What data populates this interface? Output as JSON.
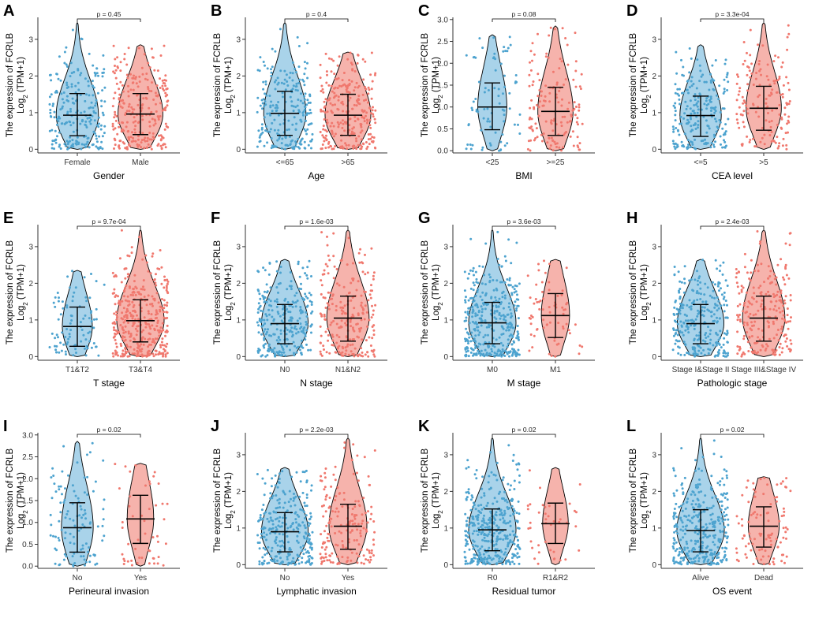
{
  "colors": {
    "group1": "#4DA3CF",
    "group2": "#F0786E",
    "fill1": "#A9D3EA",
    "fill2": "#F6B3AC"
  },
  "ylabel_line1": "The expression of FCRLB",
  "ylabel_log": "Log",
  "ylabel_sub": "2",
  "ylabel_tpm": " (TPM+1)",
  "chart_data": [
    {
      "panel": "A",
      "type": "violin",
      "xlabel": "Gender",
      "categories": [
        "Female",
        "Male"
      ],
      "pvalue": "p = 0.45",
      "yticks": [
        "0",
        "1",
        "2",
        "3"
      ],
      "ylim": [
        -0.1,
        3.6
      ],
      "groups": [
        {
          "name": "Female",
          "median": 0.93,
          "q1": 0.37,
          "q3": 1.52,
          "max": 3.45,
          "npoints": 230
        },
        {
          "name": "Male",
          "median": 0.96,
          "q1": 0.4,
          "q3": 1.52,
          "max": 2.85,
          "npoints": 260
        }
      ]
    },
    {
      "panel": "B",
      "type": "violin",
      "xlabel": "Age",
      "categories": [
        "<=65",
        ">65"
      ],
      "pvalue": "p = 0.4",
      "yticks": [
        "0",
        "1",
        "2",
        "3"
      ],
      "ylim": [
        -0.1,
        3.6
      ],
      "groups": [
        {
          "name": "<=65",
          "median": 0.98,
          "q1": 0.38,
          "q3": 1.58,
          "max": 3.45,
          "npoints": 230
        },
        {
          "name": ">65",
          "median": 0.93,
          "q1": 0.38,
          "q3": 1.5,
          "max": 2.65,
          "npoints": 270
        }
      ]
    },
    {
      "panel": "C",
      "type": "violin",
      "xlabel": "BMI",
      "categories": [
        "<25",
        ">=25"
      ],
      "pvalue": "p = 0.08",
      "yticks": [
        "0.0",
        "0.5",
        "1.0",
        "1.5",
        "2.0",
        "2.5",
        "3.0"
      ],
      "ylim": [
        -0.05,
        3.05
      ],
      "groups": [
        {
          "name": "<25",
          "median": 1.0,
          "q1": 0.48,
          "q3": 1.55,
          "max": 2.65,
          "npoints": 80
        },
        {
          "name": ">=25",
          "median": 0.9,
          "q1": 0.35,
          "q3": 1.45,
          "max": 2.85,
          "npoints": 150
        }
      ]
    },
    {
      "panel": "D",
      "type": "violin",
      "xlabel": "CEA level",
      "categories": [
        "<=5",
        ">5"
      ],
      "pvalue": "p = 3.3e-04",
      "yticks": [
        "0",
        "1",
        "2",
        "3"
      ],
      "ylim": [
        -0.1,
        3.6
      ],
      "groups": [
        {
          "name": "<=5",
          "median": 0.92,
          "q1": 0.35,
          "q3": 1.45,
          "max": 2.85,
          "npoints": 220
        },
        {
          "name": ">5",
          "median": 1.12,
          "q1": 0.52,
          "q3": 1.72,
          "max": 3.45,
          "npoints": 150
        }
      ]
    },
    {
      "panel": "E",
      "type": "violin",
      "xlabel": "T stage",
      "categories": [
        "T1&T2",
        "T3&T4"
      ],
      "pvalue": "p = 9.7e-04",
      "yticks": [
        "0",
        "1",
        "2",
        "3"
      ],
      "ylim": [
        -0.1,
        3.6
      ],
      "groups": [
        {
          "name": "T1&T2",
          "median": 0.82,
          "q1": 0.28,
          "q3": 1.35,
          "max": 2.35,
          "npoints": 90
        },
        {
          "name": "T3&T4",
          "median": 0.98,
          "q1": 0.4,
          "q3": 1.55,
          "max": 3.45,
          "npoints": 380
        }
      ]
    },
    {
      "panel": "F",
      "type": "violin",
      "xlabel": "N stage",
      "categories": [
        "N0",
        "N1&N2"
      ],
      "pvalue": "p = 1.6e-03",
      "yticks": [
        "0",
        "1",
        "2",
        "3"
      ],
      "ylim": [
        -0.1,
        3.6
      ],
      "groups": [
        {
          "name": "N0",
          "median": 0.9,
          "q1": 0.35,
          "q3": 1.42,
          "max": 2.65,
          "npoints": 280
        },
        {
          "name": "N1&N2",
          "median": 1.05,
          "q1": 0.42,
          "q3": 1.65,
          "max": 3.45,
          "npoints": 230
        }
      ]
    },
    {
      "panel": "G",
      "type": "violin",
      "xlabel": "M stage",
      "categories": [
        "M0",
        "M1"
      ],
      "pvalue": "p = 3.6e-03",
      "yticks": [
        "0",
        "1",
        "2",
        "3"
      ],
      "ylim": [
        -0.1,
        3.6
      ],
      "groups": [
        {
          "name": "M0",
          "median": 0.92,
          "q1": 0.35,
          "q3": 1.48,
          "max": 3.45,
          "npoints": 380
        },
        {
          "name": "M1",
          "median": 1.12,
          "q1": 0.52,
          "q3": 1.72,
          "max": 2.65,
          "npoints": 70
        }
      ]
    },
    {
      "panel": "H",
      "type": "violin",
      "xlabel": "Pathologic stage",
      "categories": [
        "Stage I&Stage II",
        "Stage III&Stage IV"
      ],
      "pvalue": "p = 2.4e-03",
      "yticks": [
        "0",
        "1",
        "2",
        "3"
      ],
      "ylim": [
        -0.1,
        3.6
      ],
      "groups": [
        {
          "name": "Stage I&Stage II",
          "median": 0.9,
          "q1": 0.35,
          "q3": 1.42,
          "max": 2.65,
          "npoints": 280
        },
        {
          "name": "Stage III&Stage IV",
          "median": 1.05,
          "q1": 0.42,
          "q3": 1.65,
          "max": 3.45,
          "npoints": 230
        }
      ]
    },
    {
      "panel": "I",
      "type": "violin",
      "xlabel": "Perineural invasion",
      "categories": [
        "No",
        "Yes"
      ],
      "pvalue": "p = 0.02",
      "yticks": [
        "0.0",
        "0.5",
        "1.0",
        "1.5",
        "2.0",
        "2.5",
        "3.0"
      ],
      "ylim": [
        -0.05,
        3.05
      ],
      "groups": [
        {
          "name": "No",
          "median": 0.88,
          "q1": 0.32,
          "q3": 1.45,
          "max": 2.85,
          "npoints": 110
        },
        {
          "name": "Yes",
          "median": 1.08,
          "q1": 0.52,
          "q3": 1.62,
          "max": 2.35,
          "npoints": 50
        }
      ]
    },
    {
      "panel": "J",
      "type": "violin",
      "xlabel": "Lymphatic invasion",
      "categories": [
        "No",
        "Yes"
      ],
      "pvalue": "p = 2.2e-03",
      "yticks": [
        "0",
        "1",
        "2",
        "3"
      ],
      "ylim": [
        -0.1,
        3.6
      ],
      "groups": [
        {
          "name": "No",
          "median": 0.9,
          "q1": 0.35,
          "q3": 1.42,
          "max": 2.65,
          "npoints": 280
        },
        {
          "name": "Yes",
          "median": 1.05,
          "q1": 0.42,
          "q3": 1.65,
          "max": 3.45,
          "npoints": 180
        }
      ]
    },
    {
      "panel": "K",
      "type": "violin",
      "xlabel": "Residual tumor",
      "categories": [
        "R0",
        "R1&R2"
      ],
      "pvalue": "p = 0.02",
      "yticks": [
        "0",
        "1",
        "2",
        "3"
      ],
      "ylim": [
        -0.1,
        3.6
      ],
      "groups": [
        {
          "name": "R0",
          "median": 0.95,
          "q1": 0.38,
          "q3": 1.52,
          "max": 3.45,
          "npoints": 380
        },
        {
          "name": "R1&R2",
          "median": 1.12,
          "q1": 0.58,
          "q3": 1.68,
          "max": 2.65,
          "npoints": 40
        }
      ]
    },
    {
      "panel": "L",
      "type": "violin",
      "xlabel": "OS event",
      "categories": [
        "Alive",
        "Dead"
      ],
      "pvalue": "p = 0.02",
      "yticks": [
        "0",
        "1",
        "2",
        "3"
      ],
      "ylim": [
        -0.1,
        3.6
      ],
      "groups": [
        {
          "name": "Alive",
          "median": 0.93,
          "q1": 0.35,
          "q3": 1.5,
          "max": 3.45,
          "npoints": 350
        },
        {
          "name": "Dead",
          "median": 1.05,
          "q1": 0.48,
          "q3": 1.58,
          "max": 2.4,
          "npoints": 100
        }
      ]
    }
  ]
}
